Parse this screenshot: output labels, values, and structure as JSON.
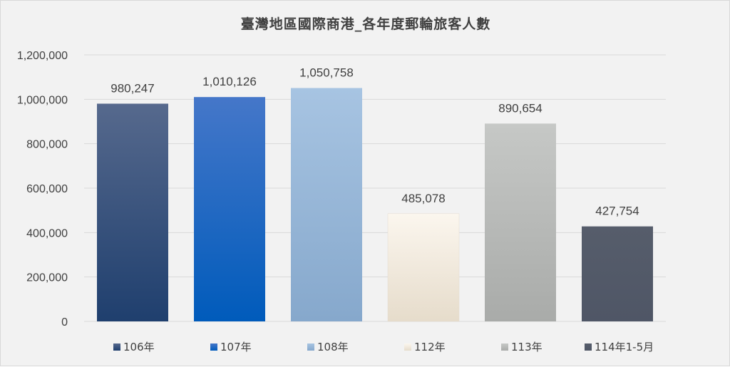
{
  "chart_data": {
    "type": "bar",
    "title": "臺灣地區國際商港_各年度郵輪旅客人數",
    "xlabel": "",
    "ylabel": "",
    "categories": [
      "106年",
      "107年",
      "108年",
      "112年",
      "113年",
      "114年1-5月"
    ],
    "values": [
      980247,
      1010126,
      1050758,
      485078,
      890654,
      427754
    ],
    "data_labels": [
      "980,247",
      "1,010,126",
      "1,050,758",
      "485,078",
      "890,654",
      "427,754"
    ],
    "ylim": [
      0,
      1200000
    ],
    "yticks": [
      0,
      200000,
      400000,
      600000,
      800000,
      1000000,
      1200000
    ],
    "ytick_labels": [
      "0",
      "200,000",
      "400,000",
      "600,000",
      "800,000",
      "1,000,000",
      "1,200,000"
    ],
    "grid": true,
    "legend_position": "bottom",
    "colors": [
      {
        "top": "#56698d",
        "bottom": "#1f3f6e"
      },
      {
        "top": "#4577c9",
        "bottom": "#005bbb"
      },
      {
        "top": "#a7c4e2",
        "bottom": "#86a8cc"
      },
      {
        "top": "#fbf6ee",
        "bottom": "#e6dccb"
      },
      {
        "top": "#c6c8c6",
        "bottom": "#a9aba9"
      },
      {
        "top": "#565d6b",
        "bottom": "#4f5666"
      }
    ]
  }
}
